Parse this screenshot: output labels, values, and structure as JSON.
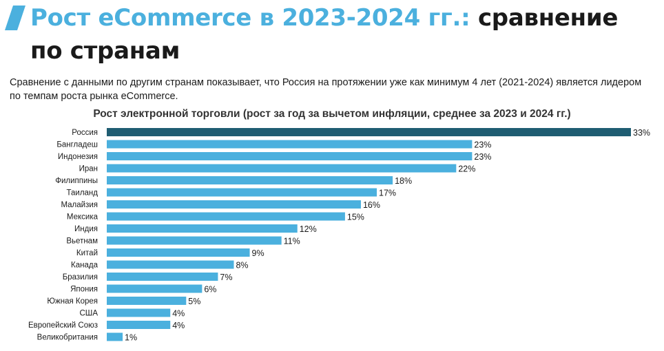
{
  "header": {
    "title_accent": "Рост eCommerce в 2023-2024 гг.:",
    "title_rest": "сравнение по странам"
  },
  "intro_text": "Сравнение с данными по другим странам показывает, что Россия на протяжении уже как минимум 4 лет (2021-2024) является лидером по темпам роста рынка eCommerce.",
  "colors": {
    "accent": "#4bb0de",
    "bar": "#4bb0de",
    "highlight_bar": "#1f5d72",
    "text": "#1a1a1a"
  },
  "chart_data": {
    "type": "bar",
    "orientation": "horizontal",
    "title": "Рост электронной торговли (рост за год за вычетом инфляции, среднее за 2023 и 2024 гг.)",
    "categories": [
      "Россия",
      "Бангладеш",
      "Индонезия",
      "Иран",
      "Филиппины",
      "Таиланд",
      "Малайзия",
      "Мексика",
      "Индия",
      "Вьетнам",
      "Китай",
      "Канада",
      "Бразилия",
      "Япония",
      "Южная Корея",
      "США",
      "Европейский Союз",
      "Великобритания"
    ],
    "values": [
      33,
      23,
      23,
      22,
      18,
      17,
      16,
      15,
      12,
      11,
      9,
      8,
      7,
      6,
      5,
      4,
      4,
      1
    ],
    "value_labels": [
      "33%",
      "23%",
      "23%",
      "22%",
      "18%",
      "17%",
      "16%",
      "15%",
      "12%",
      "11%",
      "9%",
      "8%",
      "7%",
      "6%",
      "5%",
      "4%",
      "4%",
      "1%"
    ],
    "highlight": "Россия",
    "xlim": [
      0,
      33
    ],
    "grid": false,
    "legend": "none"
  }
}
